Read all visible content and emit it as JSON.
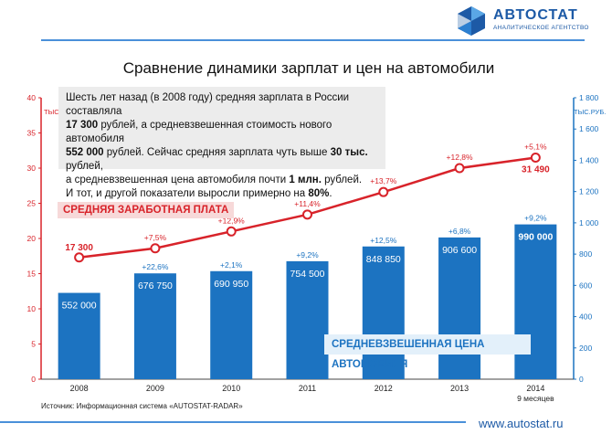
{
  "header": {
    "logo_name": "АВТОСТАТ",
    "logo_sub": "АНАЛИТИЧЕСКОЕ АГЕНТСТВО",
    "title": "Сравнение динамики зарплат и цен на автомобили",
    "brand_color": "#1d5aa6"
  },
  "note": {
    "part1": "Шесть лет назад (в 2008 году) средняя зарплата в России  составляла",
    "salary_2008": "17 300",
    "part2": " рублей, а средневзвешенная стоимость нового автомобиля",
    "price_2008": "552 000",
    "part3": " рублей. Сейчас средняя зарплата чуть выше ",
    "salary_now": "30 тыс.",
    "part4": " рублей,",
    "part5": "а средневзвешенная цена автомобиля почти ",
    "price_now": "1 млн.",
    "part6": " рублей.",
    "part7": "И тот, и другой показатели выросли примерно на ",
    "growth": "80%",
    "part8": "."
  },
  "labels": {
    "salary": "СРЕДНЯЯ ЗАРАБОТНАЯ ПЛАТА",
    "car_price": "СРЕДНЕВЗВЕШЕННАЯ ЦЕНА АВТОМОБИЛЯ"
  },
  "footer": {
    "source": "Источник: Информационная система «AUTOSTAT-RADAR»",
    "website": "www.autostat.ru"
  },
  "chart_data": {
    "type": "bar",
    "title": "Сравнение динамики зарплат и цен на автомобили",
    "categories": [
      "2008",
      "2009",
      "2010",
      "2011",
      "2012",
      "2013",
      "2014"
    ],
    "category_note": "9 месяцев",
    "left_axis": {
      "unit_label": "ТЫС.РУБ.",
      "ylim": [
        0,
        40
      ],
      "ticks": [
        "0",
        "5",
        "10",
        "15",
        "20",
        "25",
        "30",
        "35",
        "40"
      ]
    },
    "right_axis": {
      "unit_label": "ТЫС.РУБ.",
      "ylim": [
        0,
        1800
      ],
      "ticks": [
        "0",
        "200",
        "400",
        "600",
        "800",
        "1 000",
        "1 200",
        "1 400",
        "1 600",
        "1 800"
      ]
    },
    "series": [
      {
        "name": "Средневзвешенная цена автомобиля",
        "type": "bar",
        "axis": "right",
        "color": "#1c73c1",
        "values": [
          552,
          676.75,
          690.95,
          754.5,
          848.85,
          906.6,
          990
        ],
        "value_labels": [
          "552 000",
          "676 750",
          "690 950",
          "754 500",
          "848 850",
          "906 600",
          "990 000"
        ],
        "growth_labels": [
          "",
          "+22,6%",
          "+2,1%",
          "+9,2%",
          "+12,5%",
          "+6,8%",
          "+9,2%"
        ]
      },
      {
        "name": "Средняя заработная плата",
        "type": "line",
        "axis": "left",
        "color": "#d8232a",
        "values": [
          17.3,
          18.6,
          21.0,
          23.4,
          26.6,
          30.0,
          31.49
        ],
        "value_labels": [
          "17 300",
          "",
          "",
          "",
          "",
          "",
          "31 490"
        ],
        "growth_labels": [
          "",
          "+7,5%",
          "+12,9%",
          "+11,4%",
          "+13,7%",
          "+12,8%",
          "+5,1%"
        ]
      }
    ],
    "colors": {
      "bar": "#1c73c1",
      "line": "#d8232a",
      "accent": "#1d5aa6"
    }
  }
}
